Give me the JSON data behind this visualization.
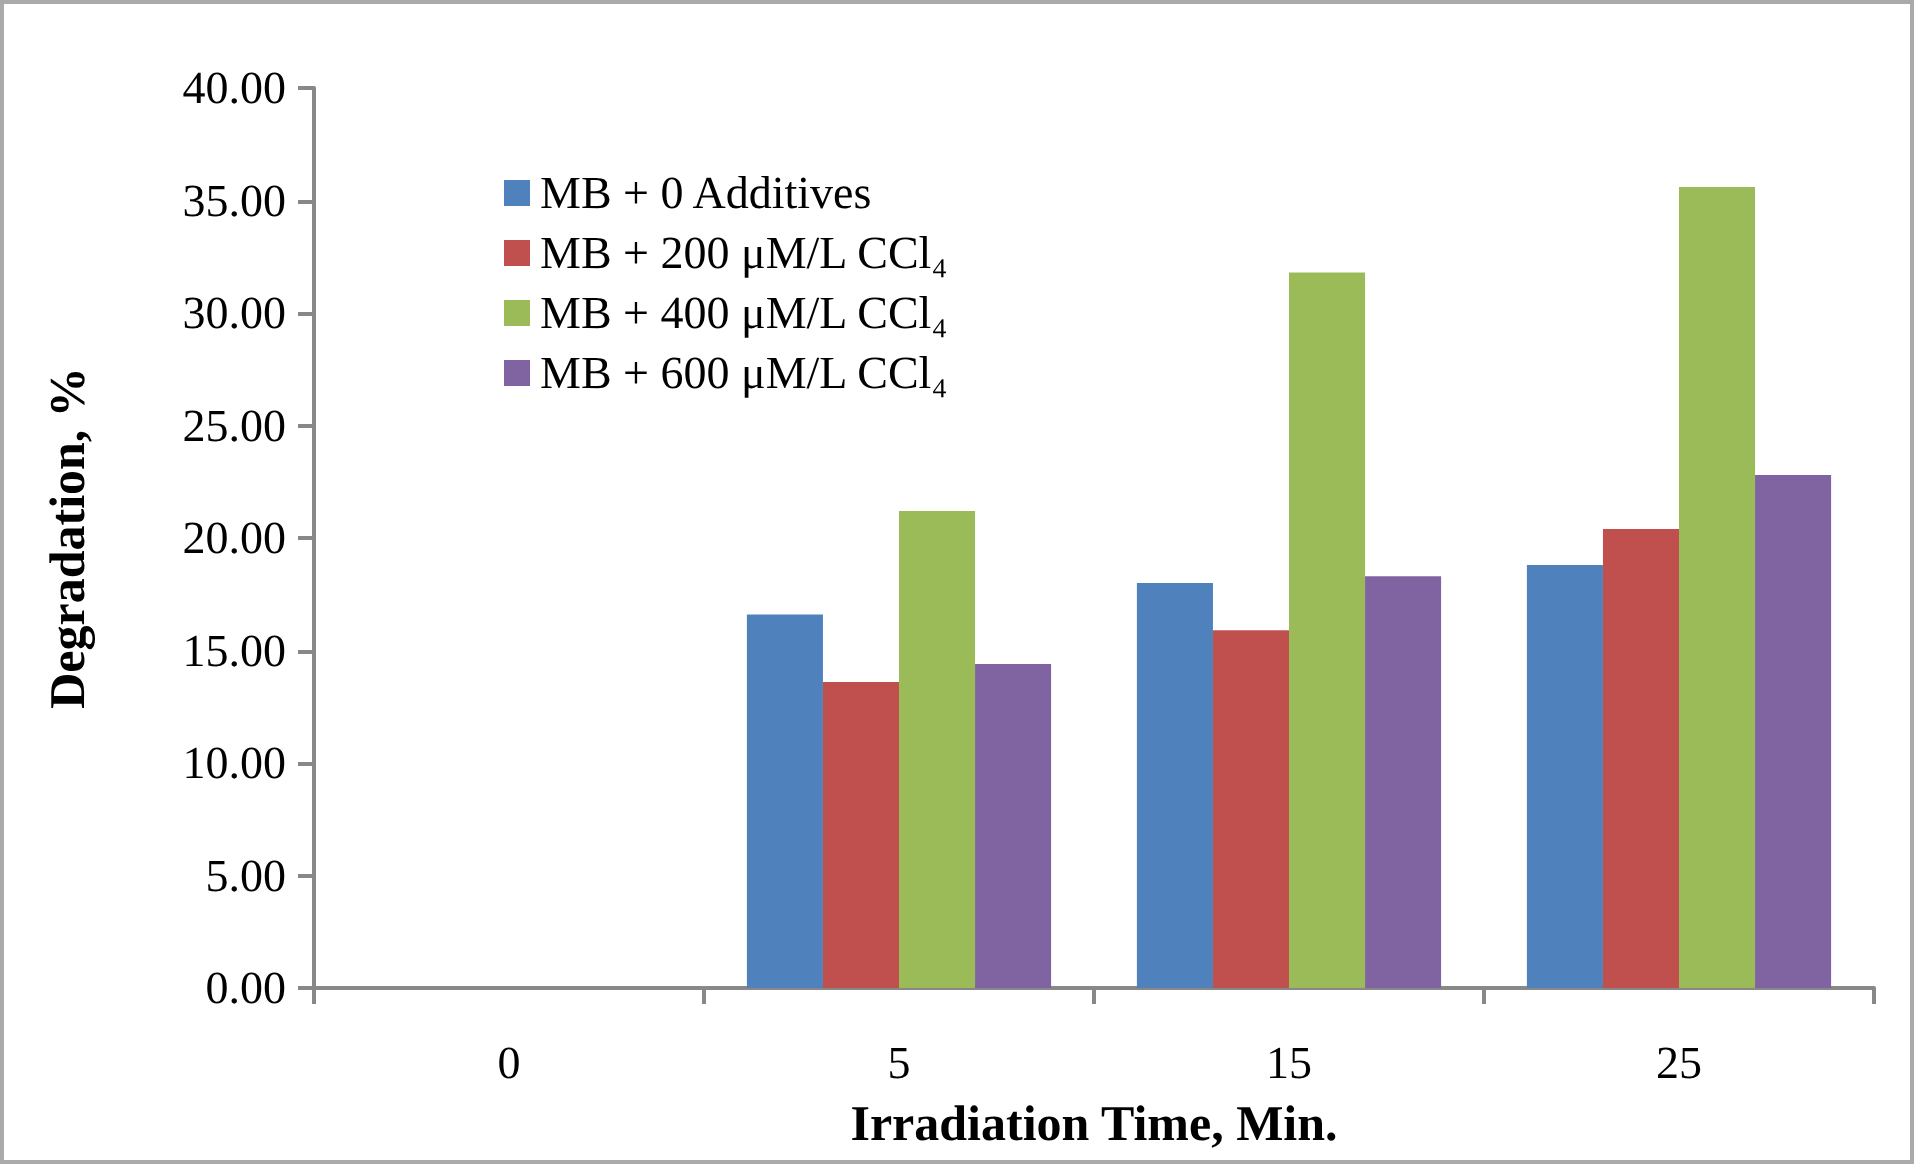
{
  "chart_data": {
    "type": "bar",
    "xlabel": "Irradiation Time, Min.",
    "ylabel": "Degradation, %",
    "categories": [
      "0",
      "5",
      "15",
      "25"
    ],
    "series": [
      {
        "name": "MB + 0 Additives",
        "color": "#4f81bd",
        "values": [
          0,
          16.6,
          18.0,
          18.8
        ]
      },
      {
        "name": "MB + 200 μM/L CCl₄",
        "color": "#c0504d",
        "values": [
          0,
          13.6,
          15.9,
          20.4
        ]
      },
      {
        "name": "MB + 400 μM/L CCl₄",
        "color": "#9bbb59",
        "values": [
          0,
          21.2,
          31.8,
          35.6
        ]
      },
      {
        "name": "MB + 600 μM/L CCl₄",
        "color": "#8064a2",
        "values": [
          0,
          14.4,
          18.3,
          22.8
        ]
      }
    ],
    "ylim": [
      0,
      40
    ],
    "yticks": [
      {
        "value": 0,
        "label": "0.00"
      },
      {
        "value": 5,
        "label": "5.00"
      },
      {
        "value": 10,
        "label": "10.00"
      },
      {
        "value": 15,
        "label": "15.00"
      },
      {
        "value": 20,
        "label": "20.00"
      },
      {
        "value": 25,
        "label": "25.00"
      },
      {
        "value": 30,
        "label": "30.00"
      },
      {
        "value": 35,
        "label": "35.00"
      },
      {
        "value": 40,
        "label": "40.00"
      }
    ],
    "grid": false,
    "legend": "top left"
  }
}
